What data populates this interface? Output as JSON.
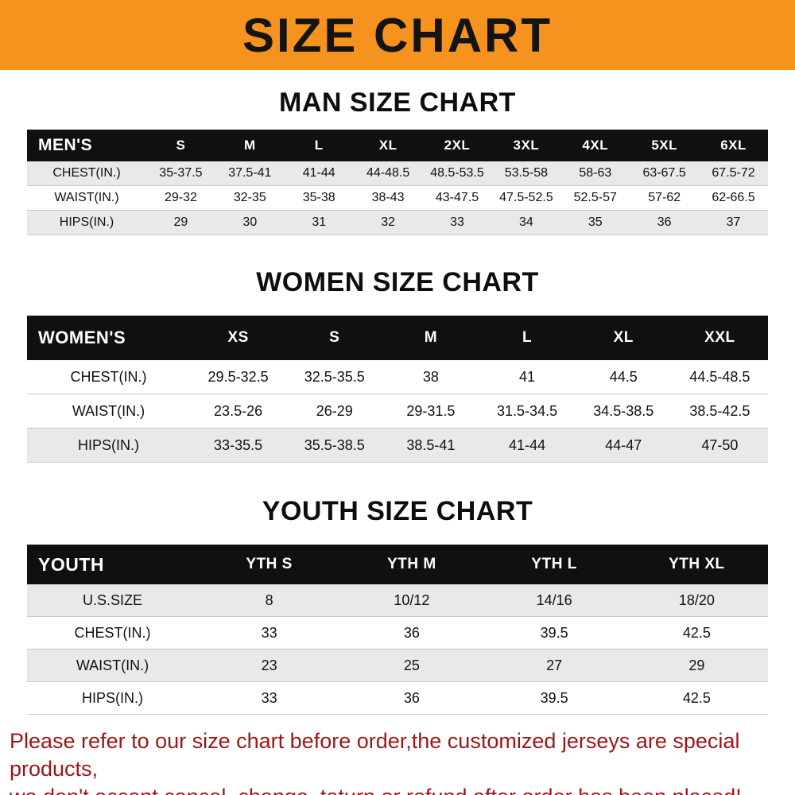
{
  "banner": {
    "title": "SIZE CHART"
  },
  "sections": [
    {
      "key": "mens",
      "heading": "MAN SIZE CHART",
      "header": [
        "MEN'S",
        "S",
        "M",
        "L",
        "XL",
        "2XL",
        "3XL",
        "4XL",
        "5XL",
        "6XL"
      ],
      "rows": [
        [
          "CHEST(IN.)",
          "35-37.5",
          "37.5-41",
          "41-44",
          "44-48.5",
          "48.5-53.5",
          "53.5-58",
          "58-63",
          "63-67.5",
          "67.5-72"
        ],
        [
          "WAIST(IN.)",
          "29-32",
          "32-35",
          "35-38",
          "38-43",
          "43-47.5",
          "47.5-52.5",
          "52.5-57",
          "57-62",
          "62-66.5"
        ],
        [
          "HIPS(IN.)",
          "29",
          "30",
          "31",
          "32",
          "33",
          "34",
          "35",
          "36",
          "37"
        ]
      ]
    },
    {
      "key": "womens",
      "heading": "WOMEN SIZE CHART",
      "header": [
        "WOMEN'S",
        "XS",
        "S",
        "M",
        "L",
        "XL",
        "XXL"
      ],
      "rows": [
        [
          "CHEST(IN.)",
          "29.5-32.5",
          "32.5-35.5",
          "38",
          "41",
          "44.5",
          "44.5-48.5"
        ],
        [
          "WAIST(IN.)",
          "23.5-26",
          "26-29",
          "29-31.5",
          "31.5-34.5",
          "34.5-38.5",
          "38.5-42.5"
        ],
        [
          "HIPS(IN.)",
          "33-35.5",
          "35.5-38.5",
          "38.5-41",
          "41-44",
          "44-47",
          "47-50"
        ]
      ]
    },
    {
      "key": "youth",
      "heading": "YOUTH SIZE CHART",
      "header": [
        "YOUTH",
        "YTH S",
        "YTH M",
        "YTH L",
        "YTH XL"
      ],
      "rows": [
        [
          "U.S.SIZE",
          "8",
          "10/12",
          "14/16",
          "18/20"
        ],
        [
          "CHEST(IN.)",
          "33",
          "36",
          "39.5",
          "42.5"
        ],
        [
          "WAIST(IN.)",
          "23",
          "25",
          "27",
          "29"
        ],
        [
          "HIPS(IN.)",
          "33",
          "36",
          "39.5",
          "42.5"
        ]
      ]
    }
  ],
  "footer": {
    "lines": [
      "Please refer to our size chart before order,the customized jerseys are special products,",
      "we don't accept cancel, change, teturn or refund after order has been placed!"
    ]
  },
  "colors": {
    "banner_bg": "#F6921E",
    "table_header_bg": "#101010",
    "row_shaded": "#e9e9e9",
    "footer_text": "#9b1717"
  }
}
